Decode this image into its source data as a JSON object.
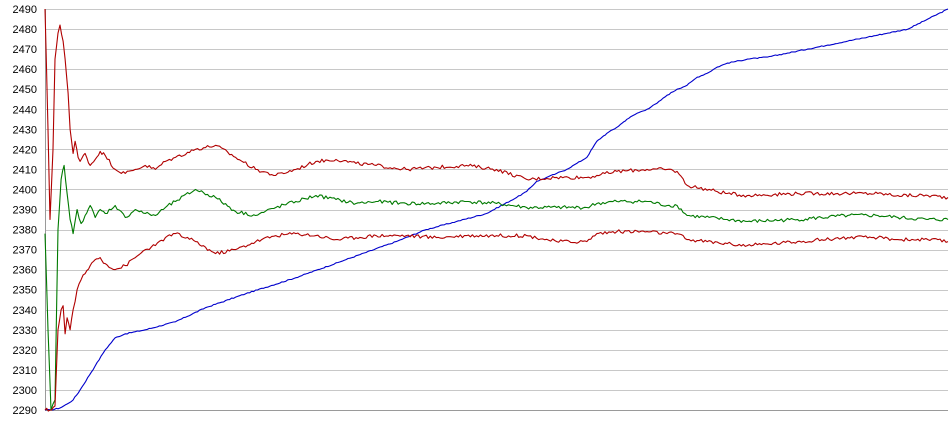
{
  "chart_data": {
    "type": "line",
    "ylim": [
      2290,
      2490
    ],
    "y_ticks": [
      "2490",
      "2480",
      "2470",
      "2460",
      "2450",
      "2440",
      "2430",
      "2420",
      "2410",
      "2400",
      "2390",
      "2380",
      "2370",
      "2360",
      "2350",
      "2340",
      "2330",
      "2320",
      "2310",
      "2300",
      "2290"
    ],
    "grid": true,
    "xlim": [
      0,
      900
    ],
    "colors": {
      "blue": "#0000cc",
      "red": "#b00000",
      "green": "#007a00",
      "grid": "#c8c8c8",
      "background": "#ffffff"
    },
    "series": [
      {
        "key": "blue",
        "color": "#0000cc",
        "x": [
          0,
          6,
          15,
          22,
          28,
          35,
          50,
          60,
          70,
          80,
          100,
          130,
          160,
          200,
          250,
          300,
          350,
          380,
          410,
          440,
          470,
          480,
          490,
          500,
          510,
          520,
          530,
          540,
          550,
          555,
          560,
          570,
          575,
          580,
          590,
          600,
          610,
          620,
          630,
          640,
          645,
          650,
          660,
          670,
          680,
          700,
          720,
          740,
          760,
          780,
          800,
          820,
          840,
          860,
          880,
          900
        ],
        "values": [
          2290,
          2290,
          2291,
          2293,
          2295,
          2300,
          2312,
          2320,
          2326,
          2328,
          2330,
          2334,
          2341,
          2348,
          2356,
          2365,
          2374,
          2380,
          2384,
          2388,
          2396,
          2399,
          2404,
          2406,
          2408,
          2410,
          2413,
          2416,
          2424,
          2426,
          2428,
          2431,
          2433,
          2435,
          2438,
          2440,
          2443,
          2447,
          2450,
          2452,
          2454,
          2456,
          2458,
          2461,
          2463,
          2465,
          2466,
          2468,
          2470,
          2472,
          2474,
          2476,
          2478,
          2480,
          2485,
          2490
        ]
      },
      {
        "key": "red_upper",
        "color": "#b00000",
        "x": [
          0,
          3,
          5,
          8,
          10,
          13,
          15,
          18,
          20,
          23,
          25,
          28,
          30,
          33,
          35,
          40,
          45,
          50,
          55,
          60,
          70,
          80,
          90,
          100,
          110,
          120,
          130,
          150,
          170,
          190,
          210,
          230,
          250,
          270,
          290,
          310,
          330,
          360,
          390,
          420,
          450,
          480,
          510,
          540,
          550,
          570,
          600,
          620,
          630,
          640,
          680,
          700,
          750,
          800,
          830,
          850,
          880,
          900
        ],
        "values": [
          2490,
          2430,
          2385,
          2420,
          2465,
          2478,
          2482,
          2474,
          2465,
          2448,
          2430,
          2418,
          2424,
          2416,
          2414,
          2418,
          2412,
          2415,
          2419,
          2417,
          2410,
          2408,
          2410,
          2412,
          2410,
          2414,
          2416,
          2420,
          2422,
          2416,
          2410,
          2407,
          2410,
          2414,
          2415,
          2413,
          2412,
          2410,
          2411,
          2412,
          2410,
          2405,
          2406,
          2406,
          2407,
          2409,
          2410,
          2410,
          2409,
          2402,
          2398,
          2397,
          2398,
          2398,
          2398,
          2397,
          2397,
          2396
        ]
      },
      {
        "key": "green",
        "color": "#007a00",
        "x": [
          0,
          3,
          6,
          10,
          13,
          16,
          19,
          22,
          25,
          28,
          32,
          36,
          40,
          45,
          50,
          55,
          60,
          70,
          80,
          90,
          100,
          110,
          120,
          130,
          150,
          170,
          190,
          210,
          230,
          250,
          270,
          290,
          310,
          330,
          360,
          390,
          420,
          450,
          480,
          510,
          540,
          550,
          570,
          600,
          620,
          630,
          640,
          680,
          700,
          750,
          800,
          830,
          850,
          880,
          900
        ],
        "values": [
          2378,
          2330,
          2290,
          2295,
          2380,
          2405,
          2412,
          2398,
          2385,
          2378,
          2390,
          2383,
          2387,
          2392,
          2386,
          2390,
          2388,
          2392,
          2386,
          2390,
          2388,
          2387,
          2391,
          2394,
          2400,
          2396,
          2389,
          2387,
          2391,
          2394,
          2397,
          2395,
          2393,
          2394,
          2393,
          2393,
          2394,
          2393,
          2391,
          2391,
          2391,
          2393,
          2394,
          2394,
          2392,
          2392,
          2387,
          2385,
          2384,
          2385,
          2387,
          2387,
          2386,
          2385,
          2385
        ]
      },
      {
        "key": "red_lower",
        "color": "#b00000",
        "x": [
          0,
          5,
          10,
          13,
          16,
          18,
          20,
          22,
          25,
          28,
          32,
          36,
          40,
          45,
          50,
          55,
          60,
          70,
          80,
          90,
          100,
          110,
          120,
          130,
          150,
          170,
          190,
          210,
          230,
          250,
          270,
          290,
          310,
          330,
          360,
          390,
          420,
          450,
          480,
          510,
          540,
          550,
          570,
          600,
          620,
          630,
          640,
          680,
          700,
          750,
          800,
          830,
          850,
          880,
          900
        ],
        "values": [
          2290,
          2290,
          2292,
          2330,
          2340,
          2342,
          2328,
          2336,
          2330,
          2340,
          2350,
          2355,
          2358,
          2362,
          2365,
          2366,
          2363,
          2360,
          2362,
          2366,
          2370,
          2372,
          2376,
          2378,
          2374,
          2368,
          2370,
          2374,
          2377,
          2378,
          2377,
          2375,
          2376,
          2377,
          2377,
          2376,
          2377,
          2377,
          2377,
          2374,
          2374,
          2378,
          2379,
          2379,
          2378,
          2378,
          2375,
          2373,
          2372,
          2374,
          2376,
          2376,
          2375,
          2375,
          2374
        ]
      }
    ]
  }
}
